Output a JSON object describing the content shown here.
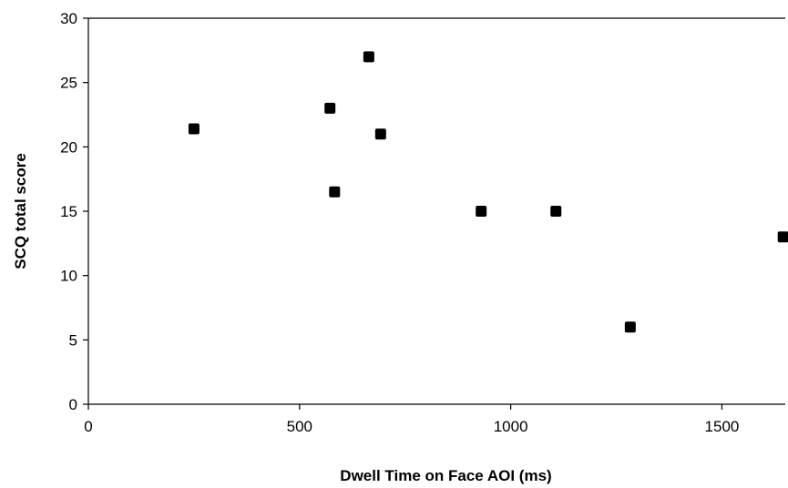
{
  "chart_data": {
    "type": "scatter",
    "title": "",
    "xlabel": "Dwell Time on Face AOI (ms)",
    "ylabel": "SCQ total score",
    "xlim": [
      0,
      1650
    ],
    "ylim": [
      0,
      30
    ],
    "xticks": [
      0,
      500,
      1000,
      1500
    ],
    "yticks": [
      0,
      5,
      10,
      15,
      20,
      25,
      30
    ],
    "xtick_labels": [
      "0",
      "500",
      "1000",
      "1500"
    ],
    "ytick_labels": [
      "0",
      "5",
      "10",
      "15",
      "20",
      "25",
      "30"
    ],
    "grid": false,
    "legend": "none",
    "marker_color": "#000000",
    "points": [
      {
        "x": 250,
        "y": 21.4
      },
      {
        "x": 572,
        "y": 23
      },
      {
        "x": 583,
        "y": 16.5
      },
      {
        "x": 664,
        "y": 27
      },
      {
        "x": 692,
        "y": 21
      },
      {
        "x": 930,
        "y": 15
      },
      {
        "x": 1107,
        "y": 15
      },
      {
        "x": 1283,
        "y": 6
      },
      {
        "x": 1645,
        "y": 13
      }
    ]
  }
}
